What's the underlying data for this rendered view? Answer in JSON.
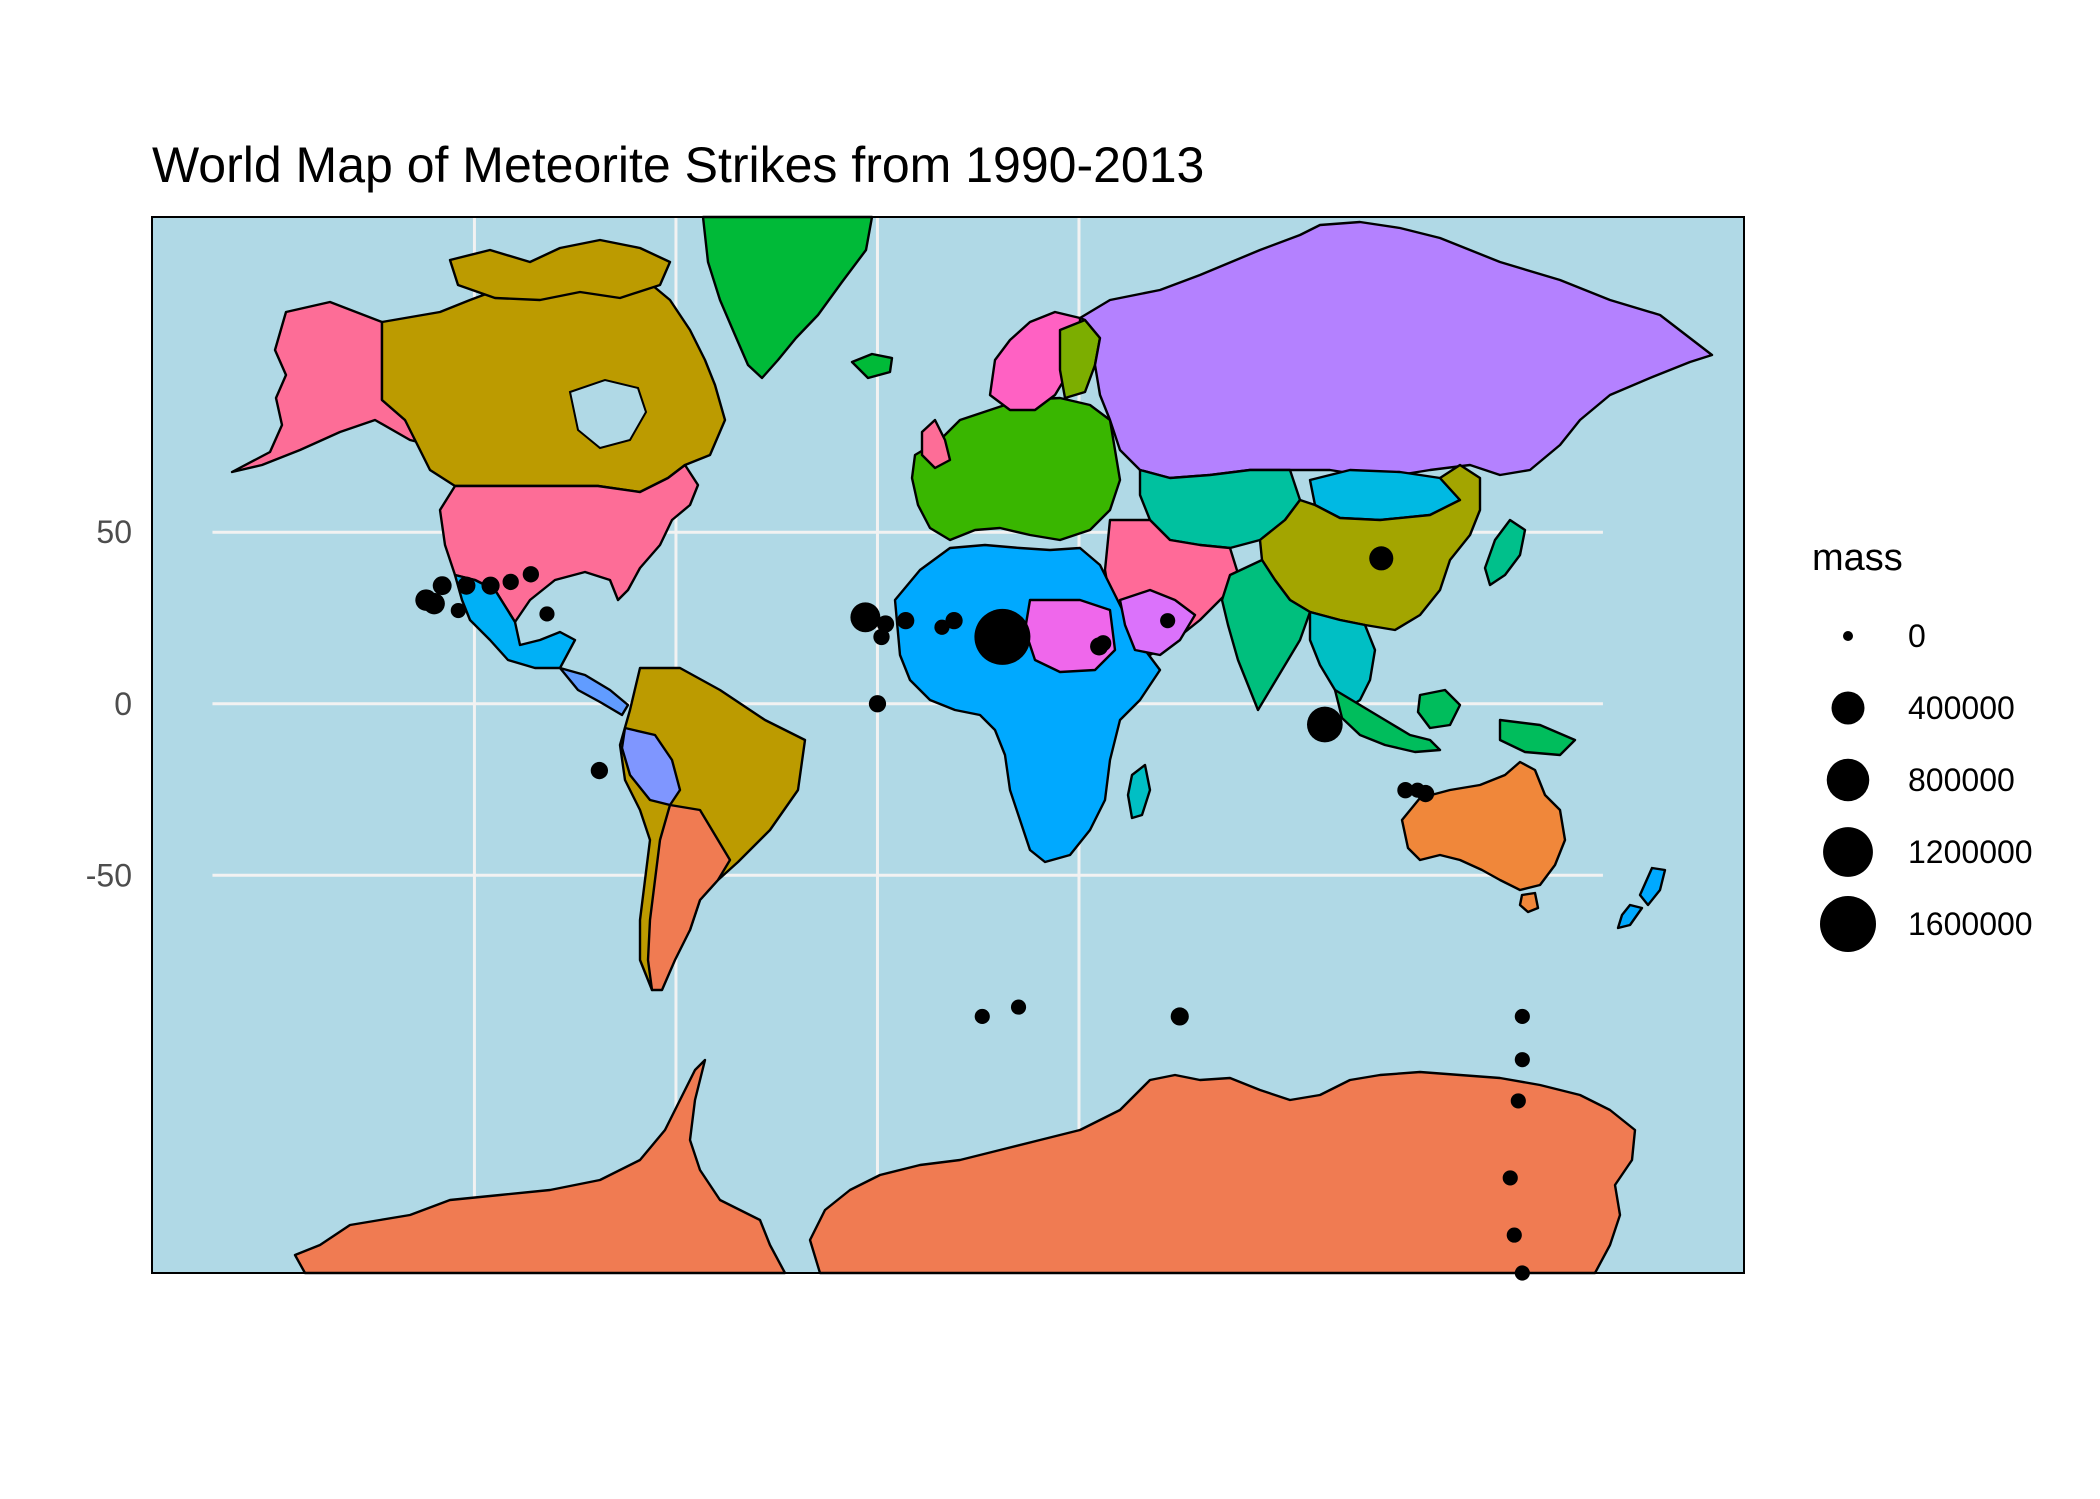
{
  "title": "World Map of Meteorite Strikes from 1990-2013",
  "colors": {
    "ocean": "#b0d9e6",
    "usa": "#fd6d97",
    "canada": "#bc9b00",
    "greenland": "#00ba38",
    "russia": "#b481ff",
    "china": "#a3a500",
    "australia": "#f0873a",
    "antarctica": "#f07b52",
    "points": "#000000"
  },
  "map": {
    "projection": "mercator",
    "y_ticks": [
      {
        "value": 50,
        "label": "50"
      },
      {
        "value": 0,
        "label": "0"
      },
      {
        "value": -50,
        "label": "-50"
      }
    ],
    "x_gridlines_lon": [
      -100,
      -50,
      0,
      50
    ]
  },
  "legend": {
    "title": "mass",
    "entries": [
      {
        "value": 0,
        "label": "0"
      },
      {
        "value": 400000,
        "label": "400000"
      },
      {
        "value": 800000,
        "label": "800000"
      },
      {
        "value": 1200000,
        "label": "1200000"
      },
      {
        "value": 1600000,
        "label": "1600000"
      }
    ]
  },
  "chart_data": {
    "type": "scatter",
    "title": "World Map of Meteorite Strikes from 1990-2013",
    "xlabel": "",
    "ylabel": "",
    "size_variable": "mass",
    "points": [
      {
        "lon": 31,
        "lat": 22,
        "mass": 1600000
      },
      {
        "lon": 111,
        "lat": -7,
        "mass": 500000
      },
      {
        "lon": 125,
        "lat": 44,
        "mass": 150000
      },
      {
        "lon": -3,
        "lat": 28,
        "mass": 300000
      },
      {
        "lon": -108,
        "lat": 37,
        "mass": 60000
      },
      {
        "lon": -112,
        "lat": 33,
        "mass": 100000
      },
      {
        "lon": -110,
        "lat": 32,
        "mass": 100000
      },
      {
        "lon": -102,
        "lat": 37,
        "mass": 50000
      },
      {
        "lon": -96,
        "lat": 37,
        "mass": 50000
      },
      {
        "lon": -91,
        "lat": 38,
        "mass": 30000
      },
      {
        "lon": -86,
        "lat": 40,
        "mass": 30000
      },
      {
        "lon": -104,
        "lat": 30,
        "mass": 20000
      },
      {
        "lon": -82,
        "lat": 29,
        "mass": 20000
      },
      {
        "lon": 7,
        "lat": 27,
        "mass": 40000
      },
      {
        "lon": 2,
        "lat": 26,
        "mass": 40000
      },
      {
        "lon": 1,
        "lat": 22,
        "mass": 30000
      },
      {
        "lon": 19,
        "lat": 27,
        "mass": 40000
      },
      {
        "lon": 16,
        "lat": 25,
        "mass": 20000
      },
      {
        "lon": 55,
        "lat": 19,
        "mass": 50000
      },
      {
        "lon": 56,
        "lat": 20,
        "mass": 30000
      },
      {
        "lon": 72,
        "lat": 27,
        "mass": 20000
      },
      {
        "lon": 0,
        "lat": 0,
        "mass": 40000
      },
      {
        "lon": -69,
        "lat": -22,
        "mass": 40000
      },
      {
        "lon": 131,
        "lat": -28,
        "mass": 30000
      },
      {
        "lon": 134,
        "lat": -28,
        "mass": 20000
      },
      {
        "lon": 136,
        "lat": -29,
        "mass": 40000
      },
      {
        "lon": 26,
        "lat": -72,
        "mass": 20000
      },
      {
        "lon": 35,
        "lat": -71,
        "mass": 20000
      },
      {
        "lon": 75,
        "lat": -72,
        "mass": 50000
      },
      {
        "lon": 160,
        "lat": -72,
        "mass": 20000
      },
      {
        "lon": 160,
        "lat": -76,
        "mass": 20000
      },
      {
        "lon": 159,
        "lat": -79,
        "mass": 20000
      },
      {
        "lon": 158,
        "lat": -85,
        "mass": 20000
      },
      {
        "lon": 160,
        "lat": -86,
        "mass": 20000
      },
      {
        "lon": 157,
        "lat": -83,
        "mass": 20000
      }
    ]
  }
}
